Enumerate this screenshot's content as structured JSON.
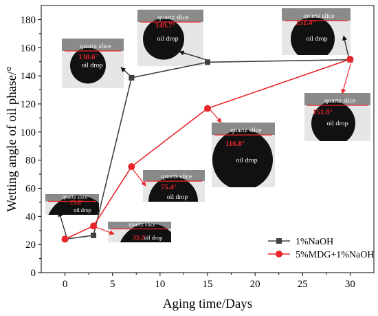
{
  "chart_data": {
    "type": "line",
    "xlabel": "Aging time/Days",
    "ylabel": "Wetting angle of oil phase/°",
    "xlim": [
      -2.5,
      32.5
    ],
    "ylim": [
      0,
      190
    ],
    "xticks": [
      0,
      5,
      10,
      15,
      20,
      25,
      30
    ],
    "yticks": [
      0,
      20,
      40,
      60,
      80,
      100,
      120,
      140,
      160,
      180
    ],
    "grid": false,
    "legend": "bottom-right",
    "series": [
      {
        "name": "1%NaOH",
        "color": "#404040",
        "marker": "square",
        "x": [
          0,
          3,
          7,
          15,
          30
        ],
        "y": [
          23.8,
          26.5,
          138.6,
          149.7,
          151.4
        ]
      },
      {
        "name": "5%MDG+1%NaOH",
        "color": "#e8262b",
        "marker": "circle",
        "x": [
          0,
          3,
          7,
          15,
          30
        ],
        "y": [
          23.8,
          33.2,
          75.4,
          116.8,
          151.8
        ]
      }
    ],
    "insets": [
      {
        "slice_label": "quartz slice",
        "drop_label": "oil drop",
        "angle_label": "23.8°"
      },
      {
        "slice_label": "quartz slice",
        "drop_label": "oil drop",
        "angle_label": "33.2°"
      },
      {
        "slice_label": "quartz slice",
        "drop_label": "oil drop",
        "angle_label": "75.4°"
      },
      {
        "slice_label": "quartz slice",
        "drop_label": "oil drop",
        "angle_label": "116.8°"
      },
      {
        "slice_label": "quartz slice",
        "drop_label": "oil drop",
        "angle_label": "151.8°"
      },
      {
        "slice_label": "quartz slice",
        "drop_label": "oil drop",
        "angle_label": "138.6°"
      },
      {
        "slice_label": "quartz slice",
        "drop_label": "oil drop",
        "angle_label": "149.7°"
      },
      {
        "slice_label": "quartz slice",
        "drop_label": "oil drop",
        "angle_label": "151.4°"
      }
    ]
  }
}
